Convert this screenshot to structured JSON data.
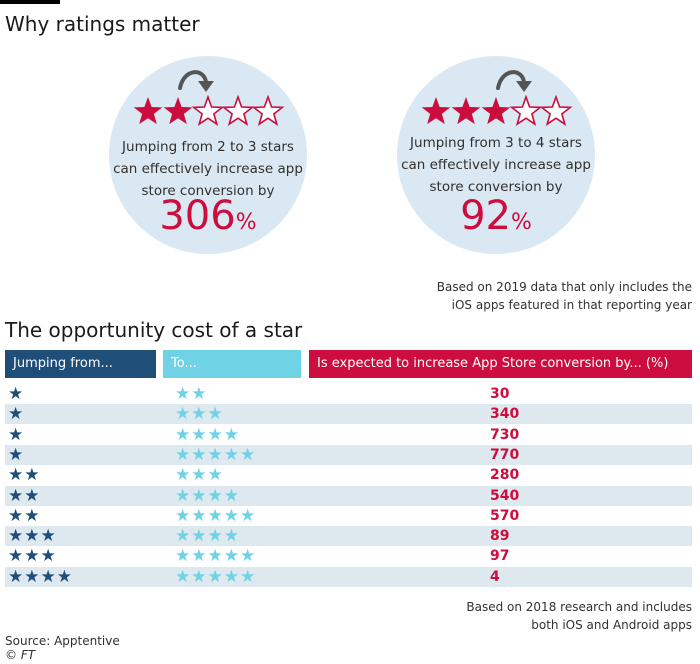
{
  "section1_title": "Why ratings matter",
  "section2_title": "The opportunity cost of a star",
  "colors": {
    "red": "#cc0d3d",
    "navy": "#1f4e79",
    "cyan": "#6fd3e5",
    "circle": "#d9e8f2",
    "row_shade": "#dde8ef"
  },
  "callouts": [
    {
      "from_stars": 2,
      "to_stars": 3,
      "total_stars": 5,
      "text": "Jumping from 2 to 3 stars can effectively increase app store conversion by",
      "value": "306",
      "unit": "%"
    },
    {
      "from_stars": 3,
      "to_stars": 4,
      "total_stars": 5,
      "text": "Jumping from 3 to 4 stars can effectively increase app store conversion by",
      "value": "92",
      "unit": "%"
    }
  ],
  "note1": [
    "Based on 2019 data that only includes the",
    "iOS apps featured in that reporting year"
  ],
  "chart_data": {
    "type": "table",
    "title": "The opportunity cost of a star",
    "columns": [
      "Jumping from...",
      "To...",
      "Is expected to increase App Store conversion by... (%)"
    ],
    "rows": [
      {
        "from": 1,
        "to": 2,
        "value": 30
      },
      {
        "from": 1,
        "to": 3,
        "value": 340
      },
      {
        "from": 1,
        "to": 4,
        "value": 730
      },
      {
        "from": 1,
        "to": 5,
        "value": 770
      },
      {
        "from": 2,
        "to": 3,
        "value": 280
      },
      {
        "from": 2,
        "to": 4,
        "value": 540
      },
      {
        "from": 2,
        "to": 5,
        "value": 570
      },
      {
        "from": 3,
        "to": 4,
        "value": 89
      },
      {
        "from": 3,
        "to": 5,
        "value": 97
      },
      {
        "from": 4,
        "to": 5,
        "value": 4
      }
    ]
  },
  "note2": [
    "Based on 2018 research and includes",
    "both iOS and Android apps"
  ],
  "source": "Source: Apptentive",
  "credit": "© FT"
}
